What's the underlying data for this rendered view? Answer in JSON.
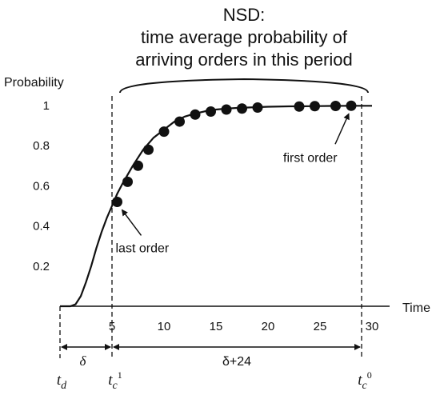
{
  "chart_data": {
    "type": "line",
    "title": "NSD:",
    "subtitle_lines": [
      "time average probability of",
      "arriving orders in this period"
    ],
    "ylabel": "Probability",
    "xlabel": "Time",
    "xlim": [
      0,
      30
    ],
    "ylim": [
      0,
      1
    ],
    "x_ticks": [
      5,
      10,
      15,
      20,
      25,
      30
    ],
    "y_ticks": [
      0,
      0.2,
      0.4,
      0.6,
      0.8,
      1
    ],
    "y_tick_labels": [
      "",
      "0.2",
      "0.4",
      "0.6",
      "0.8",
      "1"
    ],
    "grid": false,
    "curve": {
      "x": [
        0,
        1,
        1.5,
        2,
        2.5,
        3,
        3.5,
        4,
        4.5,
        5,
        5.5,
        6,
        7,
        8,
        9,
        10,
        11,
        12,
        13,
        14,
        15,
        16,
        17,
        18,
        19,
        20,
        22,
        24,
        26,
        28,
        30
      ],
      "y": [
        0,
        0,
        0.01,
        0.05,
        0.12,
        0.2,
        0.29,
        0.37,
        0.44,
        0.5,
        0.56,
        0.61,
        0.7,
        0.78,
        0.84,
        0.88,
        0.92,
        0.945,
        0.96,
        0.972,
        0.98,
        0.985,
        0.988,
        0.99,
        0.992,
        0.994,
        0.996,
        0.997,
        0.998,
        0.999,
        0.999
      ]
    },
    "markers": {
      "x": [
        5.5,
        6.5,
        7.5,
        8.5,
        10,
        11.5,
        13,
        14.5,
        16,
        17.5,
        19,
        23,
        24.5,
        26.5,
        28
      ],
      "y": [
        0.52,
        0.62,
        0.7,
        0.78,
        0.87,
        0.92,
        0.955,
        0.97,
        0.98,
        0.985,
        0.99,
        0.995,
        0.997,
        0.998,
        0.999
      ]
    },
    "vlines_x": [
      0,
      5,
      29
    ],
    "annotations": [
      {
        "text": "last order",
        "x": 5.5,
        "y": 0.52
      },
      {
        "text": "first order",
        "x": 28,
        "y": 0.999
      }
    ],
    "interval_labels": {
      "delta": "δ",
      "delta_plus": "δ+24",
      "td_main": "t",
      "td_sub": "d",
      "tc1_main": "t",
      "tc1_sub": "c",
      "tc1_sup": "1",
      "tc0_main": "t",
      "tc0_sub": "c",
      "tc0_sup": "0"
    }
  }
}
